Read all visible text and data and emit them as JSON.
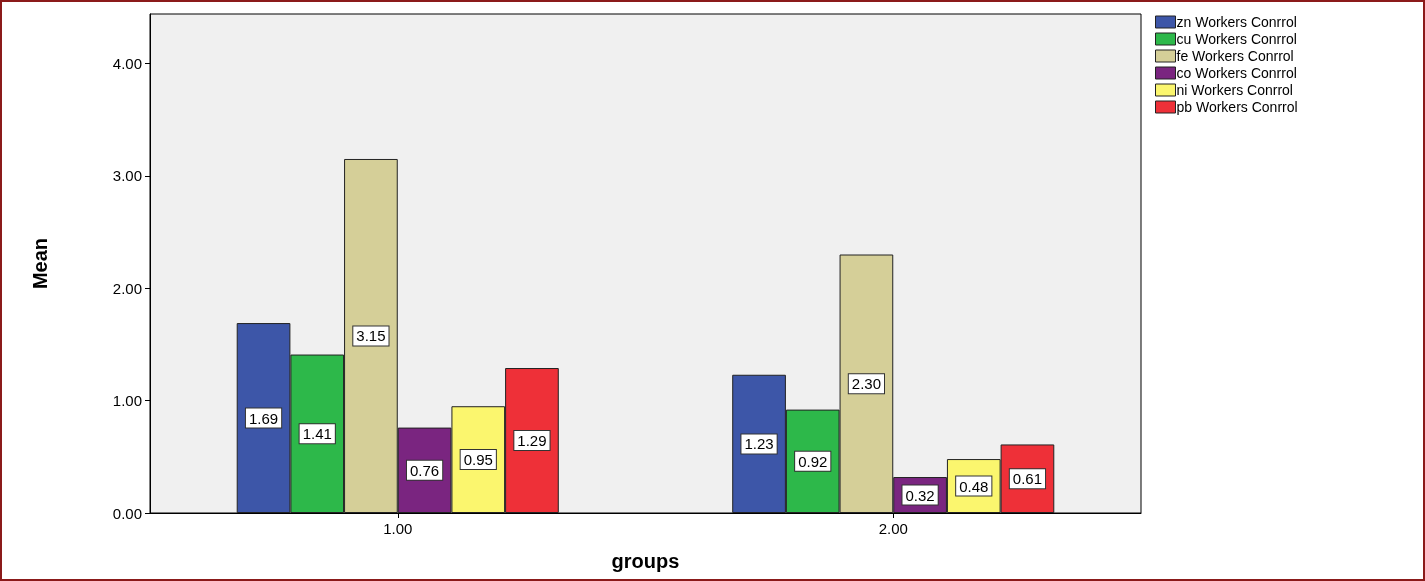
{
  "chart_data": {
    "type": "bar",
    "xlabel": "groups",
    "ylabel": "Mean",
    "categories": [
      "1.00",
      "2.00"
    ],
    "series": [
      {
        "name": "zn Workers Conrrol",
        "color": "#3d56a8",
        "values": [
          1.69,
          1.23
        ],
        "value_labels": [
          "1.69",
          "1.23"
        ]
      },
      {
        "name": "cu Workers Conrrol",
        "color": "#2db84a",
        "values": [
          1.41,
          0.92
        ],
        "value_labels": [
          "1.41",
          "0.92"
        ]
      },
      {
        "name": "fe Workers Conrrol",
        "color": "#d5cf98",
        "values": [
          3.15,
          2.3
        ],
        "value_labels": [
          "3.15",
          "2.30"
        ]
      },
      {
        "name": "co Workers Conrrol",
        "color": "#7a2580",
        "values": [
          0.76,
          0.32
        ],
        "value_labels": [
          "0.76",
          "0.32"
        ]
      },
      {
        "name": "ni Workers Conrrol",
        "color": "#fbf66e",
        "values": [
          0.95,
          0.48
        ],
        "value_labels": [
          "0.95",
          "0.48"
        ]
      },
      {
        "name": "pb Workers Conrrol",
        "color": "#ee3038",
        "values": [
          1.29,
          0.61
        ],
        "value_labels": [
          "1.29",
          "0.61"
        ]
      }
    ],
    "ylim": [
      0,
      4.44
    ],
    "yticks": [
      {
        "value": 0,
        "label": "0.00"
      },
      {
        "value": 1,
        "label": "1.00"
      },
      {
        "value": 2,
        "label": "2.00"
      },
      {
        "value": 3,
        "label": "3.00"
      },
      {
        "value": 4,
        "label": "4.00"
      }
    ],
    "grid": false,
    "legend": "top right"
  }
}
